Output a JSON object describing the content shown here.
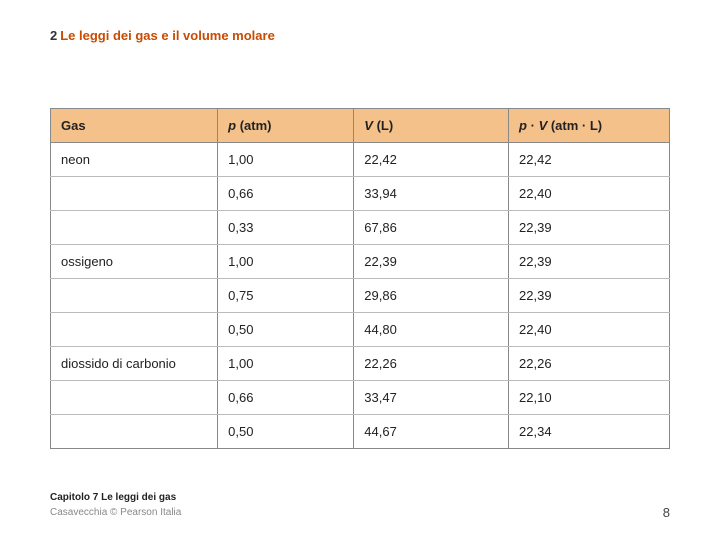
{
  "heading": {
    "number": "2",
    "text": "Le leggi dei gas e il volume molare"
  },
  "table": {
    "header_bg": "#f4c18a",
    "columns": {
      "gas": "Gas",
      "p_prefix": "p",
      "p_suffix": " (atm)",
      "v_prefix": "V",
      "v_suffix": " (L)",
      "pv_p": "p",
      "pv_dot": " · ",
      "pv_v": "V",
      "pv_suffix": " (atm · L)"
    },
    "rows": [
      {
        "gas": "neon",
        "p": "1,00",
        "v": "22,42",
        "pv": "22,42",
        "group_start": false
      },
      {
        "gas": "",
        "p": "0,66",
        "v": "33,94",
        "pv": "22,40",
        "group_start": false
      },
      {
        "gas": "",
        "p": "0,33",
        "v": "67,86",
        "pv": "22,39",
        "group_start": false
      },
      {
        "gas": "ossigeno",
        "p": "1,00",
        "v": "22,39",
        "pv": "22,39",
        "group_start": true
      },
      {
        "gas": "",
        "p": "0,75",
        "v": "29,86",
        "pv": "22,39",
        "group_start": false
      },
      {
        "gas": "",
        "p": "0,50",
        "v": "44,80",
        "pv": "22,40",
        "group_start": false
      },
      {
        "gas": "diossido di carbonio",
        "p": "1,00",
        "v": "22,26",
        "pv": "22,26",
        "group_start": true
      },
      {
        "gas": "",
        "p": "0,66",
        "v": "33,47",
        "pv": "22,10",
        "group_start": false
      },
      {
        "gas": "",
        "p": "0,50",
        "v": "44,67",
        "pv": "22,34",
        "group_start": false
      }
    ]
  },
  "footer": {
    "chapter": "Capitolo 7 Le leggi dei gas",
    "publisher": "Casavecchia © Pearson Italia",
    "page": "8"
  }
}
